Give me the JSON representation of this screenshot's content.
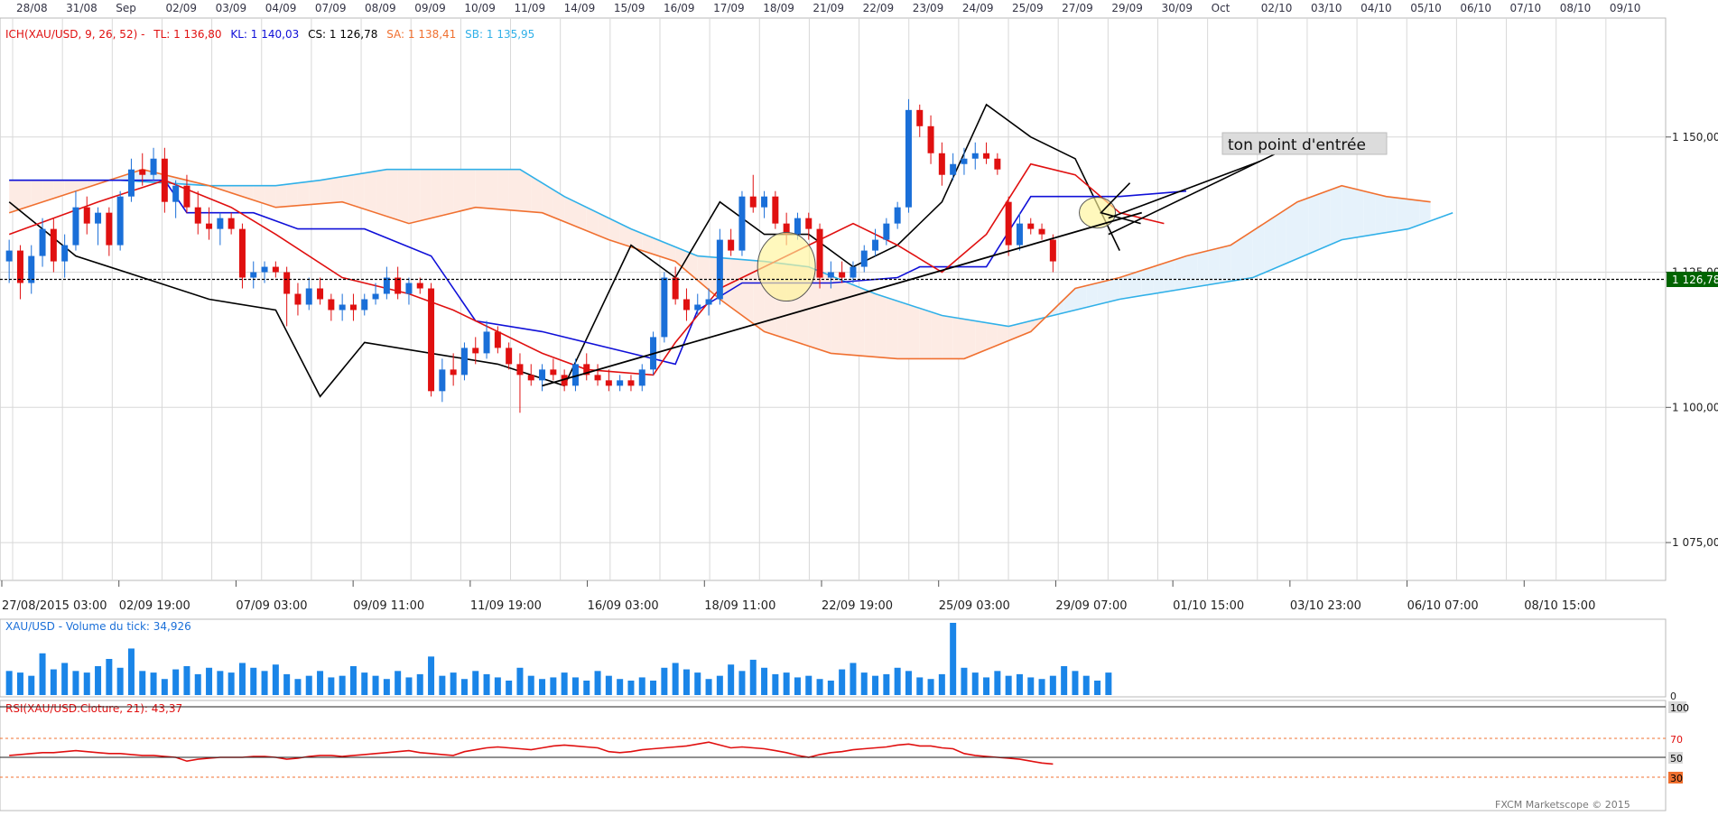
{
  "colors": {
    "bull": "#1a6fd8",
    "bear": "#e01010",
    "tenkan": "#e01010",
    "kijun": "#1010d8",
    "chikou": "#000000",
    "span_a": "#f07030",
    "span_b": "#30b0e8",
    "cloud_bull": "#e6f2fb",
    "cloud_bear": "#fdebe4",
    "volume": "#1a85e8",
    "rsi": "#e01010",
    "grid": "#d8d8d8",
    "highlight": "#fff59a"
  },
  "top_axis": {
    "labels": [
      "28/08",
      "31/08",
      "Sep",
      "02/09",
      "03/09",
      "04/09",
      "07/09",
      "08/09",
      "09/09",
      "10/09",
      "11/09",
      "14/09",
      "15/09",
      "16/09",
      "17/09",
      "18/09",
      "21/09",
      "22/09",
      "23/09",
      "24/09",
      "25/09",
      "27/09",
      "29/09",
      "30/09",
      "Oct",
      "02/10",
      "03/10",
      "04/10",
      "05/10",
      "06/10",
      "07/10",
      "08/10",
      "09/10"
    ]
  },
  "bottom_axis": {
    "labels": [
      "27/08/2015 03:00",
      "02/09 19:00",
      "07/09 03:00",
      "09/09 11:00",
      "11/09 19:00",
      "16/09 03:00",
      "18/09 11:00",
      "22/09 19:00",
      "25/09 03:00",
      "29/09 07:00",
      "01/10 15:00",
      "03/10 23:00",
      "06/10 07:00",
      "08/10 15:00"
    ]
  },
  "legend": {
    "ich": "ICH(XAU/USD, 9, 26, 52) -",
    "tl": "TL: 1 136,80",
    "kl": "KL: 1 140,03",
    "cs": "CS: 1 126,78",
    "sa": "SA: 1 138,41",
    "sb": "SB: 1 135,95"
  },
  "price_axis": {
    "ticks": [
      1075,
      1100,
      1125,
      1150
    ],
    "tick_labels": [
      "1 075,00",
      "1 100,00",
      "1 125,00",
      "1 150,00"
    ],
    "current_label": "1 126,78"
  },
  "annotation": {
    "text": "ton point d'entrée"
  },
  "volume_panel": {
    "title": "XAU/USD - Volume du tick: 34,926",
    "zero_label": "0"
  },
  "rsi_panel": {
    "title": "RSI(XAU/USD.Cloture, 21): 43,37",
    "levels": [
      "100",
      "70",
      "50",
      "30"
    ]
  },
  "footer": {
    "copyright": "FXCM Marketscope © 2015"
  },
  "chart_data": {
    "type": "candlestick",
    "instrument": "XAU/USD",
    "ylim": [
      1068,
      1172
    ],
    "current_price": 1126.78,
    "candles": [
      {
        "o": 1127,
        "h": 1131,
        "l": 1123,
        "c": 1129
      },
      {
        "o": 1129,
        "h": 1130,
        "l": 1120,
        "c": 1123
      },
      {
        "o": 1123,
        "h": 1130,
        "l": 1121,
        "c": 1128
      },
      {
        "o": 1128,
        "h": 1135,
        "l": 1126,
        "c": 1133
      },
      {
        "o": 1133,
        "h": 1135,
        "l": 1125,
        "c": 1127
      },
      {
        "o": 1127,
        "h": 1132,
        "l": 1124,
        "c": 1130
      },
      {
        "o": 1130,
        "h": 1140,
        "l": 1129,
        "c": 1137
      },
      {
        "o": 1137,
        "h": 1139,
        "l": 1132,
        "c": 1134
      },
      {
        "o": 1134,
        "h": 1137,
        "l": 1130,
        "c": 1136
      },
      {
        "o": 1136,
        "h": 1137,
        "l": 1128,
        "c": 1130
      },
      {
        "o": 1130,
        "h": 1140,
        "l": 1129,
        "c": 1139
      },
      {
        "o": 1139,
        "h": 1146,
        "l": 1138,
        "c": 1144
      },
      {
        "o": 1144,
        "h": 1147,
        "l": 1141,
        "c": 1143
      },
      {
        "o": 1143,
        "h": 1148,
        "l": 1142,
        "c": 1146
      },
      {
        "o": 1146,
        "h": 1148,
        "l": 1136,
        "c": 1138
      },
      {
        "o": 1138,
        "h": 1142,
        "l": 1135,
        "c": 1141
      },
      {
        "o": 1141,
        "h": 1143,
        "l": 1136,
        "c": 1137
      },
      {
        "o": 1137,
        "h": 1140,
        "l": 1132,
        "c": 1134
      },
      {
        "o": 1134,
        "h": 1137,
        "l": 1131,
        "c": 1133
      },
      {
        "o": 1133,
        "h": 1136,
        "l": 1130,
        "c": 1135
      },
      {
        "o": 1135,
        "h": 1136,
        "l": 1132,
        "c": 1133
      },
      {
        "o": 1133,
        "h": 1134,
        "l": 1122,
        "c": 1124
      },
      {
        "o": 1124,
        "h": 1127,
        "l": 1122,
        "c": 1125
      },
      {
        "o": 1125,
        "h": 1127,
        "l": 1123,
        "c": 1126
      },
      {
        "o": 1126,
        "h": 1127,
        "l": 1124,
        "c": 1125
      },
      {
        "o": 1125,
        "h": 1126,
        "l": 1115,
        "c": 1121
      },
      {
        "o": 1121,
        "h": 1123,
        "l": 1117,
        "c": 1119
      },
      {
        "o": 1119,
        "h": 1124,
        "l": 1118,
        "c": 1122
      },
      {
        "o": 1122,
        "h": 1124,
        "l": 1119,
        "c": 1120
      },
      {
        "o": 1120,
        "h": 1121,
        "l": 1116,
        "c": 1118
      },
      {
        "o": 1118,
        "h": 1121,
        "l": 1116,
        "c": 1119
      },
      {
        "o": 1119,
        "h": 1121,
        "l": 1116,
        "c": 1118
      },
      {
        "o": 1118,
        "h": 1121,
        "l": 1117,
        "c": 1120
      },
      {
        "o": 1120,
        "h": 1123,
        "l": 1119,
        "c": 1121
      },
      {
        "o": 1121,
        "h": 1126,
        "l": 1120,
        "c": 1124
      },
      {
        "o": 1124,
        "h": 1126,
        "l": 1120,
        "c": 1121
      },
      {
        "o": 1121,
        "h": 1124,
        "l": 1119,
        "c": 1123
      },
      {
        "o": 1123,
        "h": 1124,
        "l": 1121,
        "c": 1122
      },
      {
        "o": 1122,
        "h": 1123,
        "l": 1102,
        "c": 1103
      },
      {
        "o": 1103,
        "h": 1109,
        "l": 1101,
        "c": 1107
      },
      {
        "o": 1107,
        "h": 1110,
        "l": 1104,
        "c": 1106
      },
      {
        "o": 1106,
        "h": 1112,
        "l": 1105,
        "c": 1111
      },
      {
        "o": 1111,
        "h": 1113,
        "l": 1108,
        "c": 1110
      },
      {
        "o": 1110,
        "h": 1116,
        "l": 1109,
        "c": 1114
      },
      {
        "o": 1114,
        "h": 1115,
        "l": 1110,
        "c": 1111
      },
      {
        "o": 1111,
        "h": 1112,
        "l": 1107,
        "c": 1108
      },
      {
        "o": 1108,
        "h": 1110,
        "l": 1099,
        "c": 1106
      },
      {
        "o": 1106,
        "h": 1108,
        "l": 1104,
        "c": 1105
      },
      {
        "o": 1105,
        "h": 1108,
        "l": 1103,
        "c": 1107
      },
      {
        "o": 1107,
        "h": 1109,
        "l": 1105,
        "c": 1106
      },
      {
        "o": 1106,
        "h": 1107,
        "l": 1103,
        "c": 1104
      },
      {
        "o": 1104,
        "h": 1109,
        "l": 1103,
        "c": 1108
      },
      {
        "o": 1108,
        "h": 1110,
        "l": 1105,
        "c": 1106
      },
      {
        "o": 1106,
        "h": 1108,
        "l": 1104,
        "c": 1105
      },
      {
        "o": 1105,
        "h": 1107,
        "l": 1103,
        "c": 1104
      },
      {
        "o": 1104,
        "h": 1106,
        "l": 1103,
        "c": 1105
      },
      {
        "o": 1105,
        "h": 1106,
        "l": 1103,
        "c": 1104
      },
      {
        "o": 1104,
        "h": 1108,
        "l": 1103,
        "c": 1107
      },
      {
        "o": 1107,
        "h": 1114,
        "l": 1106,
        "c": 1113
      },
      {
        "o": 1113,
        "h": 1125,
        "l": 1112,
        "c": 1124
      },
      {
        "o": 1124,
        "h": 1126,
        "l": 1119,
        "c": 1120
      },
      {
        "o": 1120,
        "h": 1122,
        "l": 1116,
        "c": 1118
      },
      {
        "o": 1118,
        "h": 1121,
        "l": 1117,
        "c": 1119
      },
      {
        "o": 1119,
        "h": 1122,
        "l": 1117,
        "c": 1120
      },
      {
        "o": 1120,
        "h": 1133,
        "l": 1119,
        "c": 1131
      },
      {
        "o": 1131,
        "h": 1133,
        "l": 1128,
        "c": 1129
      },
      {
        "o": 1129,
        "h": 1140,
        "l": 1128,
        "c": 1139
      },
      {
        "o": 1139,
        "h": 1143,
        "l": 1136,
        "c": 1137
      },
      {
        "o": 1137,
        "h": 1140,
        "l": 1135,
        "c": 1139
      },
      {
        "o": 1139,
        "h": 1140,
        "l": 1133,
        "c": 1134
      },
      {
        "o": 1134,
        "h": 1136,
        "l": 1130,
        "c": 1132
      },
      {
        "o": 1132,
        "h": 1136,
        "l": 1131,
        "c": 1135
      },
      {
        "o": 1135,
        "h": 1136,
        "l": 1131,
        "c": 1133
      },
      {
        "o": 1133,
        "h": 1134,
        "l": 1122,
        "c": 1124
      },
      {
        "o": 1124,
        "h": 1127,
        "l": 1122,
        "c": 1125
      },
      {
        "o": 1125,
        "h": 1127,
        "l": 1123,
        "c": 1124
      },
      {
        "o": 1124,
        "h": 1127,
        "l": 1123,
        "c": 1126
      },
      {
        "o": 1126,
        "h": 1130,
        "l": 1125,
        "c": 1129
      },
      {
        "o": 1129,
        "h": 1133,
        "l": 1128,
        "c": 1131
      },
      {
        "o": 1131,
        "h": 1135,
        "l": 1130,
        "c": 1134
      },
      {
        "o": 1134,
        "h": 1138,
        "l": 1133,
        "c": 1137
      },
      {
        "o": 1137,
        "h": 1157,
        "l": 1136,
        "c": 1155
      },
      {
        "o": 1155,
        "h": 1156,
        "l": 1150,
        "c": 1152
      },
      {
        "o": 1152,
        "h": 1154,
        "l": 1145,
        "c": 1147
      },
      {
        "o": 1147,
        "h": 1149,
        "l": 1141,
        "c": 1143
      },
      {
        "o": 1143,
        "h": 1147,
        "l": 1142,
        "c": 1145
      },
      {
        "o": 1145,
        "h": 1148,
        "l": 1143,
        "c": 1146
      },
      {
        "o": 1146,
        "h": 1149,
        "l": 1144,
        "c": 1147
      },
      {
        "o": 1147,
        "h": 1149,
        "l": 1145,
        "c": 1146
      },
      {
        "o": 1146,
        "h": 1147,
        "l": 1143,
        "c": 1144
      },
      {
        "o": 1138,
        "h": 1139,
        "l": 1128,
        "c": 1130
      },
      {
        "o": 1130,
        "h": 1136,
        "l": 1129,
        "c": 1134
      },
      {
        "o": 1134,
        "h": 1135,
        "l": 1132,
        "c": 1133
      },
      {
        "o": 1133,
        "h": 1134,
        "l": 1131,
        "c": 1132
      },
      {
        "o": 1131,
        "h": 1132,
        "l": 1125,
        "c": 1127
      }
    ],
    "tenkan_points": [
      [
        0,
        1132
      ],
      [
        8,
        1138
      ],
      [
        14,
        1142
      ],
      [
        20,
        1137
      ],
      [
        24,
        1132
      ],
      [
        30,
        1124
      ],
      [
        36,
        1121
      ],
      [
        40,
        1118
      ],
      [
        44,
        1114
      ],
      [
        48,
        1110
      ],
      [
        52,
        1107
      ],
      [
        58,
        1106
      ],
      [
        60,
        1112
      ],
      [
        64,
        1122
      ],
      [
        68,
        1126
      ],
      [
        72,
        1130
      ],
      [
        76,
        1134
      ],
      [
        80,
        1130
      ],
      [
        84,
        1125
      ],
      [
        88,
        1132
      ],
      [
        92,
        1145
      ],
      [
        96,
        1143
      ],
      [
        100,
        1136
      ],
      [
        104,
        1134
      ]
    ],
    "kijun_points": [
      [
        0,
        1142
      ],
      [
        14,
        1142
      ],
      [
        16,
        1136
      ],
      [
        22,
        1136
      ],
      [
        26,
        1133
      ],
      [
        32,
        1133
      ],
      [
        38,
        1128
      ],
      [
        42,
        1116
      ],
      [
        48,
        1114
      ],
      [
        56,
        1110
      ],
      [
        60,
        1108
      ],
      [
        62,
        1118
      ],
      [
        66,
        1123
      ],
      [
        74,
        1123
      ],
      [
        80,
        1124
      ],
      [
        82,
        1126
      ],
      [
        88,
        1126
      ],
      [
        92,
        1139
      ],
      [
        100,
        1139
      ],
      [
        106,
        1140
      ]
    ],
    "chikou_points": [
      [
        0,
        1138
      ],
      [
        6,
        1128
      ],
      [
        12,
        1124
      ],
      [
        18,
        1120
      ],
      [
        24,
        1118
      ],
      [
        28,
        1102
      ],
      [
        32,
        1112
      ],
      [
        38,
        1110
      ],
      [
        44,
        1108
      ],
      [
        50,
        1104
      ],
      [
        56,
        1130
      ],
      [
        60,
        1124
      ],
      [
        64,
        1138
      ],
      [
        68,
        1132
      ],
      [
        72,
        1132
      ],
      [
        76,
        1126
      ],
      [
        80,
        1130
      ],
      [
        84,
        1138
      ],
      [
        88,
        1156
      ],
      [
        92,
        1150
      ],
      [
        96,
        1146
      ],
      [
        100,
        1129
      ]
    ],
    "span_a_points": [
      [
        0,
        1136
      ],
      [
        6,
        1140
      ],
      [
        12,
        1144
      ],
      [
        18,
        1141
      ],
      [
        24,
        1137
      ],
      [
        30,
        1138
      ],
      [
        36,
        1134
      ],
      [
        42,
        1137
      ],
      [
        48,
        1136
      ],
      [
        54,
        1131
      ],
      [
        60,
        1127
      ],
      [
        64,
        1120
      ],
      [
        68,
        1114
      ],
      [
        74,
        1110
      ],
      [
        80,
        1109
      ],
      [
        86,
        1109
      ],
      [
        92,
        1114
      ],
      [
        96,
        1122
      ],
      [
        100,
        1124
      ],
      [
        106,
        1128
      ],
      [
        110,
        1130
      ],
      [
        116,
        1138
      ],
      [
        120,
        1141
      ],
      [
        124,
        1139
      ],
      [
        128,
        1138
      ]
    ],
    "span_b_points": [
      [
        0,
        1142
      ],
      [
        10,
        1142
      ],
      [
        18,
        1141
      ],
      [
        24,
        1141
      ],
      [
        28,
        1142
      ],
      [
        34,
        1144
      ],
      [
        40,
        1144
      ],
      [
        46,
        1144
      ],
      [
        50,
        1139
      ],
      [
        56,
        1133
      ],
      [
        62,
        1128
      ],
      [
        68,
        1127
      ],
      [
        72,
        1126
      ],
      [
        78,
        1121
      ],
      [
        84,
        1117
      ],
      [
        90,
        1115
      ],
      [
        96,
        1118
      ],
      [
        100,
        1120
      ],
      [
        106,
        1122
      ],
      [
        112,
        1124
      ],
      [
        120,
        1131
      ],
      [
        126,
        1133
      ],
      [
        130,
        1136
      ]
    ],
    "volume": [
      30,
      28,
      24,
      52,
      32,
      40,
      30,
      28,
      36,
      45,
      34,
      58,
      30,
      28,
      20,
      32,
      36,
      26,
      34,
      30,
      28,
      40,
      34,
      30,
      38,
      26,
      20,
      24,
      30,
      22,
      24,
      36,
      28,
      24,
      20,
      30,
      22,
      26,
      48,
      24,
      28,
      20,
      30,
      26,
      22,
      18,
      34,
      24,
      20,
      22,
      28,
      22,
      18,
      30,
      24,
      20,
      18,
      22,
      18,
      34,
      40,
      32,
      28,
      20,
      24,
      38,
      30,
      44,
      34,
      26,
      28,
      22,
      24,
      20,
      18,
      32,
      40,
      28,
      24,
      26,
      34,
      30,
      22,
      20,
      26,
      90,
      34,
      28,
      22,
      30,
      24,
      26,
      22,
      20,
      24,
      36,
      30,
      24,
      18,
      28
    ],
    "rsi": [
      52,
      53,
      54,
      55,
      55,
      56,
      57,
      56,
      55,
      54,
      54,
      53,
      52,
      52,
      51,
      50,
      46,
      48,
      49,
      50,
      50,
      50,
      51,
      51,
      50,
      48,
      49,
      51,
      52,
      52,
      51,
      52,
      53,
      54,
      55,
      56,
      57,
      55,
      54,
      53,
      52,
      56,
      58,
      60,
      61,
      60,
      59,
      58,
      60,
      62,
      63,
      62,
      61,
      60,
      56,
      55,
      56,
      58,
      59,
      60,
      61,
      62,
      64,
      66,
      63,
      60,
      61,
      60,
      59,
      57,
      55,
      52,
      50,
      53,
      55,
      56,
      58,
      59,
      60,
      61,
      63,
      64,
      62,
      62,
      60,
      59,
      54,
      52,
      51,
      50,
      49,
      48,
      46,
      44,
      43
    ]
  }
}
